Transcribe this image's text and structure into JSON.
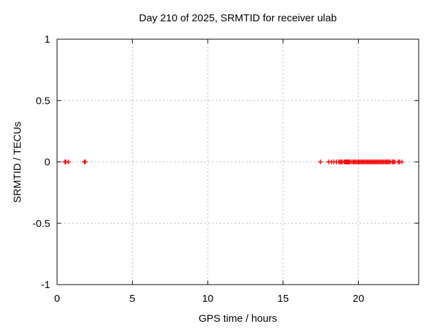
{
  "window": {
    "background": "#ffffff"
  },
  "chart_data": {
    "type": "scatter",
    "title": "Day 210 of 2025, SRMTID for receiver ulab",
    "xlabel": "GPS time / hours",
    "ylabel": "SRMTID / TECUs",
    "xlim": [
      0,
      24
    ],
    "ylim": [
      -1,
      1
    ],
    "xticks": [
      0,
      5,
      10,
      15,
      20
    ],
    "yticks": [
      -1,
      -0.5,
      0,
      0.5,
      1
    ],
    "ytick_labels": [
      "-1",
      "-0.5",
      "0",
      "0.5",
      "1"
    ],
    "xtick_labels": [
      "0",
      "5",
      "10",
      "15",
      "20"
    ],
    "grid": true,
    "legend_position": "none",
    "marker": "plus",
    "marker_color": "#ff0000",
    "grid_color": "#b2b2b2",
    "axis_color": "#000000",
    "series": [
      {
        "name": "SRMTID",
        "y_constant": 0,
        "x": [
          0.52,
          0.57,
          0.75,
          1.82,
          1.87,
          17.48,
          18.03,
          18.22,
          18.37,
          18.54,
          18.7,
          18.78,
          18.86,
          18.94,
          19.07,
          19.13,
          19.19,
          19.25,
          19.31,
          19.38,
          19.44,
          19.55,
          19.65,
          19.72,
          19.8,
          19.88,
          19.97,
          20.04,
          20.12,
          20.2,
          20.28,
          20.36,
          20.44,
          20.52,
          20.6,
          20.68,
          20.76,
          20.84,
          20.92,
          21.0,
          21.08,
          21.16,
          21.24,
          21.32,
          21.4,
          21.48,
          21.56,
          21.64,
          21.72,
          21.8,
          21.88,
          21.96,
          22.04,
          22.12,
          22.25,
          22.33,
          22.41,
          22.65,
          22.73,
          22.88
        ]
      }
    ]
  }
}
